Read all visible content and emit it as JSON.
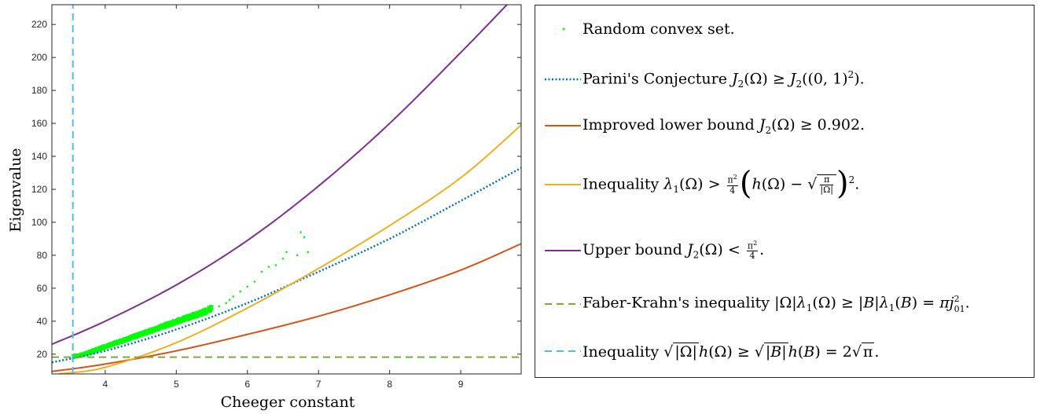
{
  "chart_data": {
    "type": "scatter",
    "xlabel": "Cheeger constant",
    "ylabel": "Eigenvalue",
    "xlim": [
      3.25,
      9.85
    ],
    "ylim": [
      8,
      232
    ],
    "xticks": [
      4,
      5,
      6,
      7,
      8,
      9
    ],
    "yticks": [
      20,
      40,
      60,
      80,
      100,
      120,
      140,
      160,
      180,
      200,
      220
    ],
    "grid": false,
    "legend_position": "outside-right",
    "series": [
      {
        "name": "Random convex set.",
        "kind": "scatter",
        "color": "#00ff00",
        "points": [
          [
            3.55,
            18
          ],
          [
            3.7,
            19.5
          ],
          [
            3.8,
            21
          ],
          [
            3.9,
            22.5
          ],
          [
            4.0,
            24
          ],
          [
            4.1,
            25.5
          ],
          [
            4.2,
            27
          ],
          [
            4.3,
            28.5
          ],
          [
            4.4,
            30
          ],
          [
            4.5,
            31.5
          ],
          [
            4.6,
            33
          ],
          [
            4.7,
            34.5
          ],
          [
            4.8,
            36
          ],
          [
            4.9,
            37.5
          ],
          [
            5.0,
            39
          ],
          [
            5.1,
            40.5
          ],
          [
            5.2,
            42
          ],
          [
            5.3,
            43.5
          ],
          [
            5.4,
            45
          ],
          [
            5.5,
            47
          ],
          [
            5.6,
            49
          ],
          [
            5.7,
            51
          ],
          [
            5.75,
            53
          ],
          [
            5.8,
            55
          ],
          [
            5.9,
            58
          ],
          [
            6.0,
            61
          ],
          [
            6.1,
            64
          ],
          [
            6.2,
            70
          ],
          [
            6.3,
            73
          ],
          [
            6.4,
            74
          ],
          [
            6.5,
            78
          ],
          [
            6.55,
            82
          ],
          [
            6.7,
            80
          ],
          [
            6.75,
            94
          ],
          [
            6.8,
            91
          ],
          [
            6.85,
            82
          ]
        ]
      },
      {
        "name": "Parini's Conjecture J₂(Ω) ≥ J₂((0,1)²).",
        "kind": "line",
        "style": "dotted",
        "color": "#0072bd",
        "points": [
          [
            3.25,
            15
          ],
          [
            4,
            22
          ],
          [
            5,
            35
          ],
          [
            6,
            51
          ],
          [
            7,
            70
          ],
          [
            8,
            90
          ],
          [
            9,
            113
          ],
          [
            9.85,
            133
          ]
        ]
      },
      {
        "name": "Improved lower bound J₂(Ω) ≥ 0.902.",
        "kind": "line",
        "style": "solid",
        "color": "#d95319",
        "points": [
          [
            3.25,
            9.5
          ],
          [
            4,
            14
          ],
          [
            5,
            22
          ],
          [
            6,
            32
          ],
          [
            7,
            43
          ],
          [
            8,
            56
          ],
          [
            9,
            71
          ],
          [
            9.85,
            87
          ]
        ]
      },
      {
        "name": "Inequality λ₁(Ω) > π²/4 (h(Ω) − √(π/|Ω|))².",
        "kind": "line",
        "style": "solid",
        "color": "#edb120",
        "points": [
          [
            3.35,
            8
          ],
          [
            4,
            12
          ],
          [
            5,
            27
          ],
          [
            6,
            48
          ],
          [
            7,
            72
          ],
          [
            8,
            98
          ],
          [
            9,
            127
          ],
          [
            9.85,
            159
          ]
        ]
      },
      {
        "name": "Upper bound J₂(Ω) < π²/4.",
        "kind": "line",
        "style": "solid",
        "color": "#7e2f8e",
        "points": [
          [
            3.25,
            26
          ],
          [
            4,
            40
          ],
          [
            5,
            62
          ],
          [
            6,
            89
          ],
          [
            7,
            122
          ],
          [
            8,
            160
          ],
          [
            9,
            203
          ],
          [
            9.65,
            232
          ]
        ]
      },
      {
        "name": "Faber-Krahn's inequality |Ω|λ₁(Ω) ≥ |B|λ₁(B) = πj₀₁².",
        "kind": "line",
        "style": "dashed",
        "color": "#77ac30",
        "points": [
          [
            3.25,
            18.2
          ],
          [
            9.85,
            18.2
          ]
        ]
      },
      {
        "name": "Inequality √|Ω| h(Ω) ≥ √|B| h(B) = 2√π.",
        "kind": "line",
        "style": "dashed",
        "color": "#4dbeee",
        "points": [
          [
            3.545,
            8
          ],
          [
            3.545,
            232
          ]
        ]
      }
    ]
  },
  "legend": {
    "item0": "Random convex set.",
    "item1a": "Parini's Conjecture ",
    "item2a": "Improved lower bound ",
    "item3a": "Inequality ",
    "item4a": "Upper bound ",
    "item5a": "Faber-Krahn's inequality ",
    "item6a": "Inequality "
  }
}
